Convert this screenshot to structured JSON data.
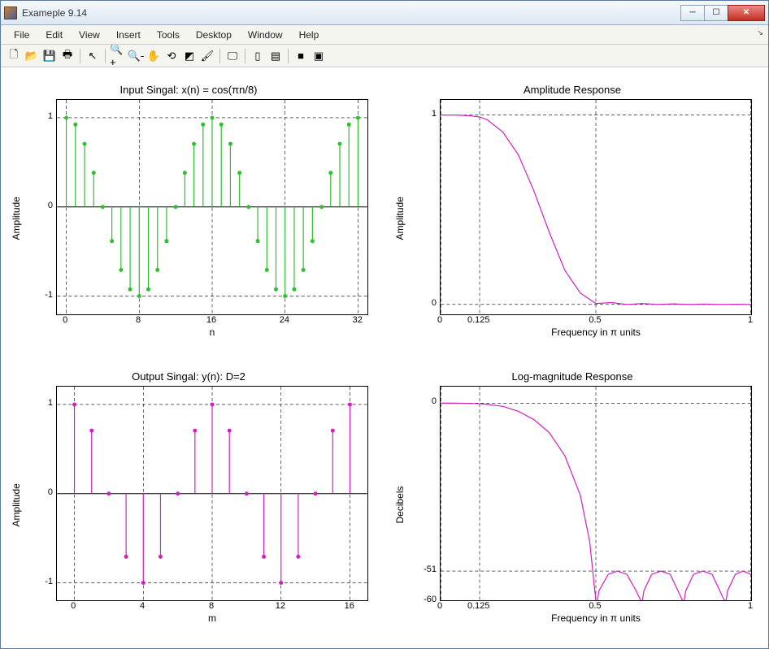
{
  "window": {
    "title": "Exameple 9.14"
  },
  "menus": [
    "File",
    "Edit",
    "View",
    "Insert",
    "Tools",
    "Desktop",
    "Window",
    "Help"
  ],
  "toolbar_icons": [
    {
      "name": "new-figure-icon",
      "glyph": "🗋"
    },
    {
      "name": "open-icon",
      "glyph": "📂"
    },
    {
      "name": "save-icon",
      "glyph": "💾"
    },
    {
      "name": "print-icon",
      "glyph": "🖶"
    },
    {
      "sep": true
    },
    {
      "name": "pointer-icon",
      "glyph": "↖"
    },
    {
      "sep": true
    },
    {
      "name": "zoom-in-icon",
      "glyph": "🔍+"
    },
    {
      "name": "zoom-out-icon",
      "glyph": "🔍-"
    },
    {
      "name": "pan-icon",
      "glyph": "✋"
    },
    {
      "name": "rotate-icon",
      "glyph": "⟲"
    },
    {
      "name": "data-cursor-icon",
      "glyph": "◩"
    },
    {
      "name": "brush-icon",
      "glyph": "🖌"
    },
    {
      "sep": true
    },
    {
      "name": "link-icon",
      "glyph": "🖵"
    },
    {
      "sep": true
    },
    {
      "name": "colorbar-icon",
      "glyph": "▯"
    },
    {
      "name": "legend-icon",
      "glyph": "▤"
    },
    {
      "sep": true
    },
    {
      "name": "hide-tools-icon",
      "glyph": "■"
    },
    {
      "name": "show-tools-icon",
      "glyph": "▣"
    }
  ],
  "subplots": {
    "input": {
      "title": "Input Singal: x(n) = cos(πn/8)",
      "ylabel": "Amplitude",
      "xlabel": "n",
      "type": "stem",
      "color": "#2fbf2f",
      "marker_color": "#2fbf2f",
      "grid_color": "#000",
      "grid_dash": "4,3",
      "xlim": [
        -1,
        33
      ],
      "ylim": [
        -1.2,
        1.2
      ],
      "xticks": [
        0,
        8,
        16,
        24,
        32
      ],
      "yticks": [
        -1,
        0,
        1
      ],
      "x": [
        0,
        1,
        2,
        3,
        4,
        5,
        6,
        7,
        8,
        9,
        10,
        11,
        12,
        13,
        14,
        15,
        16,
        17,
        18,
        19,
        20,
        21,
        22,
        23,
        24,
        25,
        26,
        27,
        28,
        29,
        30,
        31,
        32
      ],
      "y": [
        1.0,
        0.924,
        0.707,
        0.383,
        0.0,
        -0.383,
        -0.707,
        -0.924,
        -1.0,
        -0.924,
        -0.707,
        -0.383,
        0.0,
        0.383,
        0.707,
        0.924,
        1.0,
        0.924,
        0.707,
        0.383,
        0.0,
        -0.383,
        -0.707,
        -0.924,
        -1.0,
        -0.924,
        -0.707,
        -0.383,
        0.0,
        0.383,
        0.707,
        0.924,
        1.0
      ]
    },
    "output": {
      "title": "Output Singal: y(n): D=2",
      "ylabel": "Amplitude",
      "xlabel": "m",
      "type": "stem",
      "color": "#d020c0",
      "marker_color": "#d020c0",
      "grid_color": "#000",
      "grid_dash": "4,3",
      "xlim": [
        -1,
        17
      ],
      "ylim": [
        -1.2,
        1.2
      ],
      "xticks": [
        0,
        4,
        8,
        12,
        16
      ],
      "yticks": [
        -1,
        0,
        1
      ],
      "x": [
        0,
        1,
        2,
        3,
        4,
        5,
        6,
        7,
        8,
        9,
        10,
        11,
        12,
        13,
        14,
        15,
        16
      ],
      "y": [
        1.0,
        0.707,
        0.0,
        -0.707,
        -1.0,
        -0.707,
        0.0,
        0.707,
        1.0,
        0.707,
        0.0,
        -0.707,
        -1.0,
        -0.707,
        0.0,
        0.707,
        1.0
      ]
    },
    "amp": {
      "title": "Amplitude Response",
      "ylabel": "Amplitude",
      "xlabel": "Frequency in π units",
      "type": "line",
      "color": "#d020c0",
      "grid_color": "#000",
      "grid_dash": "4,3",
      "xlim": [
        0,
        1
      ],
      "ylim": [
        -0.05,
        1.08
      ],
      "xticks": [
        0,
        0.125,
        0.5,
        1
      ],
      "yticks": [
        0,
        1
      ],
      "curve": [
        [
          0,
          1
        ],
        [
          0.05,
          1
        ],
        [
          0.1,
          0.995
        ],
        [
          0.125,
          0.99
        ],
        [
          0.15,
          0.975
        ],
        [
          0.2,
          0.91
        ],
        [
          0.25,
          0.79
        ],
        [
          0.3,
          0.6
        ],
        [
          0.35,
          0.38
        ],
        [
          0.4,
          0.18
        ],
        [
          0.45,
          0.06
        ],
        [
          0.5,
          0.005
        ],
        [
          0.55,
          0.01
        ],
        [
          0.6,
          0.0
        ],
        [
          0.65,
          0.005
        ],
        [
          0.7,
          0.0
        ],
        [
          0.75,
          0.003
        ],
        [
          0.8,
          0.0
        ],
        [
          0.85,
          0.002
        ],
        [
          0.9,
          0.0
        ],
        [
          0.95,
          0.001
        ],
        [
          1,
          0.0
        ]
      ]
    },
    "logmag": {
      "title": "Log-magnitude Response",
      "ylabel": "Decibels",
      "xlabel": "Frequency in π units",
      "type": "line",
      "color": "#d020c0",
      "grid_color": "#000",
      "grid_dash": "4,3",
      "xlim": [
        0,
        1
      ],
      "ylim": [
        -60,
        5
      ],
      "xticks": [
        0,
        0.125,
        0.5,
        1
      ],
      "yticks": [
        -60,
        -51,
        0
      ],
      "curve": [
        [
          0,
          0
        ],
        [
          0.05,
          -0.02
        ],
        [
          0.1,
          -0.1
        ],
        [
          0.125,
          -0.2
        ],
        [
          0.15,
          -0.4
        ],
        [
          0.2,
          -1.0
        ],
        [
          0.25,
          -2.5
        ],
        [
          0.3,
          -5
        ],
        [
          0.35,
          -9
        ],
        [
          0.4,
          -16
        ],
        [
          0.45,
          -28
        ],
        [
          0.48,
          -42
        ],
        [
          0.5,
          -60
        ],
        [
          0.505,
          -60
        ],
        [
          0.51,
          -57
        ],
        [
          0.54,
          -52
        ],
        [
          0.57,
          -51
        ],
        [
          0.6,
          -52
        ],
        [
          0.63,
          -57
        ],
        [
          0.645,
          -60
        ],
        [
          0.65,
          -60
        ],
        [
          0.655,
          -57
        ],
        [
          0.68,
          -52
        ],
        [
          0.71,
          -51
        ],
        [
          0.74,
          -52
        ],
        [
          0.765,
          -57
        ],
        [
          0.78,
          -60
        ],
        [
          0.785,
          -60
        ],
        [
          0.79,
          -57
        ],
        [
          0.815,
          -52
        ],
        [
          0.845,
          -51
        ],
        [
          0.875,
          -52
        ],
        [
          0.9,
          -57
        ],
        [
          0.915,
          -60
        ],
        [
          0.92,
          -60
        ],
        [
          0.925,
          -57
        ],
        [
          0.95,
          -52
        ],
        [
          0.975,
          -51
        ],
        [
          1.0,
          -52
        ]
      ]
    }
  },
  "plot_style": {
    "background_color": "#ffffff",
    "axis_color": "#000000",
    "tick_fontsize": 11,
    "label_fontsize": 12,
    "title_fontsize": 13,
    "marker_radius": 2.5,
    "line_width": 1.2
  }
}
